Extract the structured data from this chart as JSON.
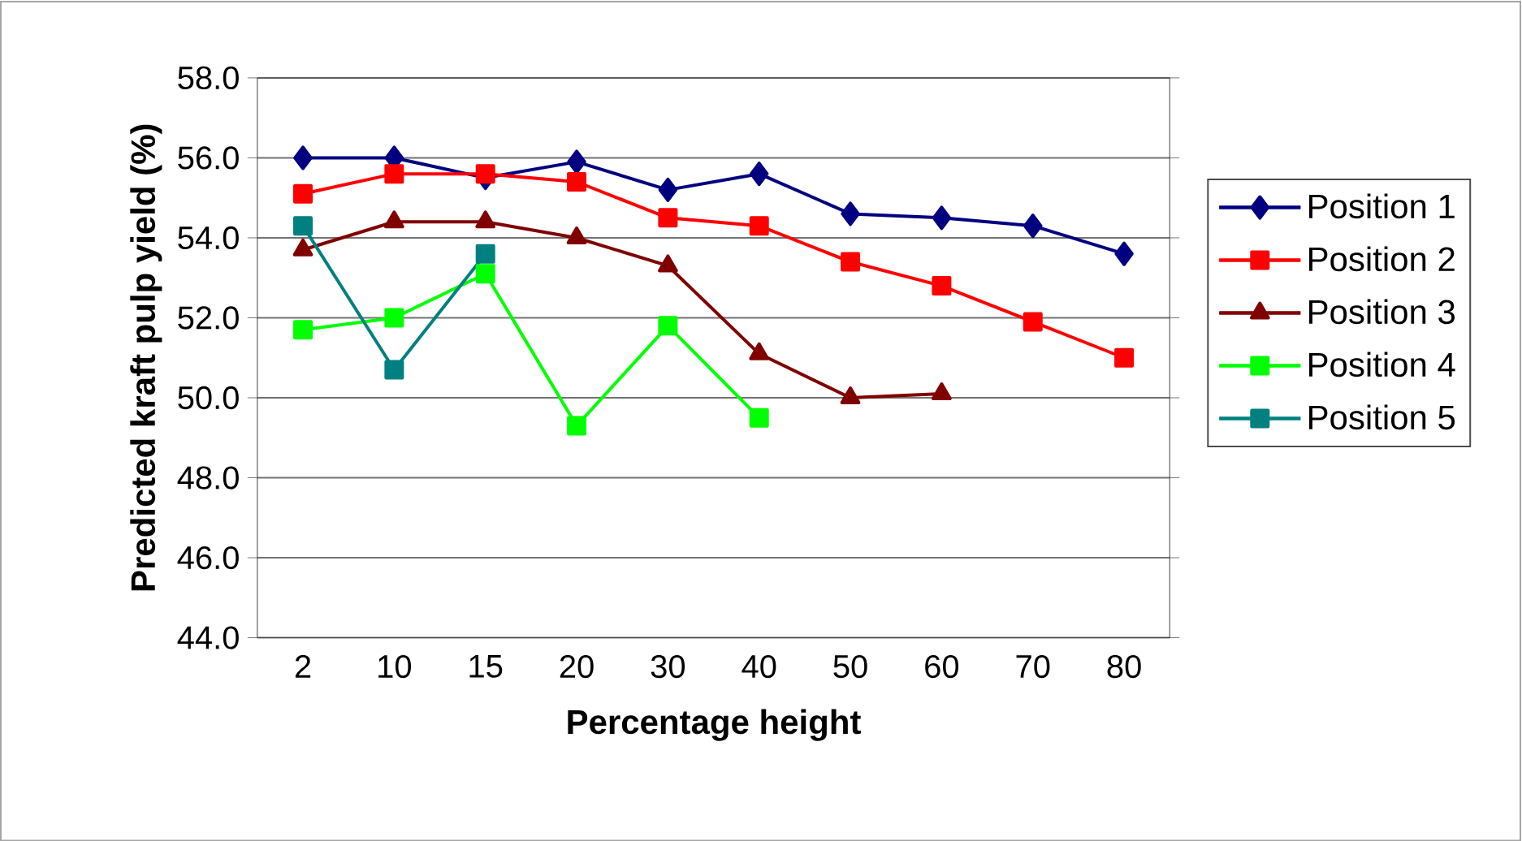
{
  "chart_data": {
    "type": "line",
    "xlabel": "Percentage height",
    "ylabel": "Predicted kraft pulp yield (%)",
    "categories": [
      "2",
      "10",
      "15",
      "20",
      "30",
      "40",
      "50",
      "60",
      "70",
      "80"
    ],
    "series": [
      {
        "name": "Position 1",
        "color": "#000080",
        "marker": "diamond",
        "values": [
          56.0,
          56.0,
          55.5,
          55.9,
          55.2,
          55.6,
          54.6,
          54.5,
          54.3,
          53.6
        ]
      },
      {
        "name": "Position 2",
        "color": "#ff0000",
        "marker": "square",
        "values": [
          55.1,
          55.6,
          55.6,
          55.4,
          54.5,
          54.3,
          53.4,
          52.8,
          51.9,
          51.0
        ]
      },
      {
        "name": "Position 3",
        "color": "#800000",
        "marker": "triangle",
        "values": [
          53.7,
          54.4,
          54.4,
          54.0,
          53.3,
          51.1,
          50.0,
          50.1,
          null,
          null
        ]
      },
      {
        "name": "Position 4",
        "color": "#00ff00",
        "marker": "square",
        "values": [
          51.7,
          52.0,
          53.1,
          49.3,
          51.8,
          49.5,
          null,
          null,
          null,
          null
        ]
      },
      {
        "name": "Position 5",
        "color": "#008080",
        "marker": "square",
        "values": [
          54.3,
          50.7,
          53.6,
          null,
          null,
          null,
          null,
          null,
          null,
          null
        ]
      }
    ],
    "ylim": [
      44,
      58
    ],
    "yticks": [
      {
        "value": 44,
        "label": "44.0"
      },
      {
        "value": 46,
        "label": "46.0"
      },
      {
        "value": 48,
        "label": "48.0"
      },
      {
        "value": 50,
        "label": "50.0"
      },
      {
        "value": 52,
        "label": "52.0"
      },
      {
        "value": 54,
        "label": "54.0"
      },
      {
        "value": 56,
        "label": "56.0"
      },
      {
        "value": 58,
        "label": "58.0"
      }
    ],
    "grid": "y",
    "legend": "right",
    "line_style": "solid"
  }
}
